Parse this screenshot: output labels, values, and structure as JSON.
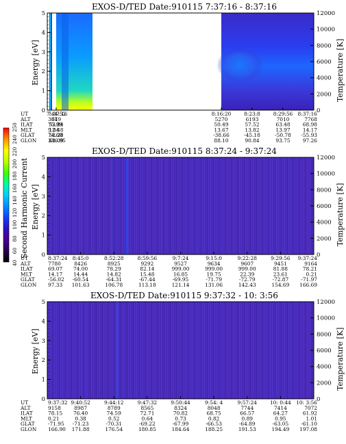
{
  "colorbar": {
    "label": "Second Harmonic Current",
    "ticks": [
      "40",
      "60",
      "80",
      "100",
      "120",
      "140",
      "160",
      "180",
      "200",
      "220",
      "240",
      "250"
    ],
    "colors": [
      "#000000",
      "#2a0050",
      "#4a0090",
      "#3010c0",
      "#1040ff",
      "#0090ff",
      "#00d0ff",
      "#00ffa0",
      "#40ff00",
      "#c0ff00",
      "#ffff00",
      "#ff9000",
      "#ff0000"
    ]
  },
  "chart_data": [
    {
      "type": "heatmap",
      "title": "EXOS-D/TED   Date:910115  7:37:16 - 8:37:16",
      "ylabel": "Energy [eV]",
      "ylabel_right": "Temperature [K]",
      "ylim": [
        0,
        5
      ],
      "ylim_right": [
        0,
        12000
      ],
      "y_ticks": [
        "0",
        "1",
        "2",
        "3",
        "4",
        "5"
      ],
      "y_ticks_right": [
        "0",
        "2000",
        "4000",
        "6000",
        "8000",
        "10000",
        "12000"
      ],
      "orbit_row_labels": [
        "UT",
        "ALT",
        "ILAT",
        "MLT",
        "GLAT",
        "GLON"
      ],
      "orbit_columns": [
        {
          "UT": "7:37:16",
          "ALT": "387",
          "ILAT": "75.99",
          "MLT": "9.04",
          "GLAT": "74.60",
          "GLON": "336.95"
        },
        {
          "UT": "7:44:52",
          "ALT": "649",
          "ILAT": "53.84",
          "MLT": "12.48",
          "GLAT": "58.28",
          "GLON": "60.09"
        },
        {
          "UT": "8:16:20",
          "ALT": "5270",
          "ILAT": "50.49",
          "MLT": "13.67",
          "GLAT": "-38.66",
          "GLON": "88.10"
        },
        {
          "UT": "8:23:8",
          "ALT": "6193",
          "ILAT": "57.52",
          "MLT": "13.82",
          "GLAT": "-45.18",
          "GLON": "90.84"
        },
        {
          "UT": "8:29:56",
          "ALT": "7010",
          "ILAT": "63.48",
          "MLT": "13.97",
          "GLAT": "-50.78",
          "GLON": "93.75"
        },
        {
          "UT": "8:37:16",
          "ALT": "7768",
          "ILAT": "68.98",
          "MLT": "14.17",
          "GLAT": "-55.93",
          "GLON": "97.26"
        }
      ]
    },
    {
      "type": "heatmap",
      "title": "EXOS-D/TED   Date:910115  8:37:24 - 9:37:24",
      "ylabel": "Energy [eV]",
      "ylabel_right": "Temperature [K]",
      "ylim": [
        0,
        5
      ],
      "ylim_right": [
        0,
        12000
      ],
      "y_ticks": [
        "0",
        "1",
        "2",
        "3",
        "4",
        "5"
      ],
      "y_ticks_right": [
        "0",
        "2000",
        "4000",
        "6000",
        "8000",
        "10000",
        "12000"
      ],
      "orbit_row_labels": [
        "UT",
        "ALT",
        "ILAT",
        "MLT",
        "GLAT",
        "GLON"
      ],
      "orbit_columns": [
        {
          "UT": "8:37:24",
          "ALT": "7780",
          "ILAT": "69.07",
          "MLT": "14.17",
          "GLAT": "-56.02",
          "GLON": "97.33"
        },
        {
          "UT": "8:45:0",
          "ALT": "8426",
          "ILAT": "74.00",
          "MLT": "14.44",
          "GLAT": "-60.54",
          "GLON": "101.63"
        },
        {
          "UT": "8:52:28",
          "ALT": "8925",
          "ILAT": "78.29",
          "MLT": "14.82",
          "GLAT": "-64.31",
          "GLON": "106.78"
        },
        {
          "UT": "8:59:56",
          "ALT": "9292",
          "ILAT": "82.14",
          "MLT": "15.48",
          "GLAT": "-67.44",
          "GLON": "113.18"
        },
        {
          "UT": "9:7:24",
          "ALT": "9527",
          "ILAT": "999.00",
          "MLT": "16.85",
          "GLAT": "-69.95",
          "GLON": "121.14"
        },
        {
          "UT": "9:15:0",
          "ALT": "9634",
          "ILAT": "999.00",
          "MLT": "19.75",
          "GLAT": "-71.79",
          "GLON": "131.06"
        },
        {
          "UT": "9:22:28",
          "ALT": "9607",
          "ILAT": "999.00",
          "MLT": "22.39",
          "GLAT": "-72.79",
          "GLON": "142.43"
        },
        {
          "UT": "9:29:56",
          "ALT": "9451",
          "ILAT": "81.88",
          "MLT": "23.61",
          "GLAT": "-72.87",
          "GLON": "154.69"
        },
        {
          "UT": "9:37:24",
          "ALT": "9164",
          "ILAT": "78.21",
          "MLT": "0.21",
          "GLAT": "-71.97",
          "GLON": "166.69"
        }
      ]
    },
    {
      "type": "heatmap",
      "title": "EXOS-D/TED   Date:910115  9:37:32 - 10: 3:56",
      "ylabel": "Energy [eV]",
      "ylabel_right": "Temperature [K]",
      "ylim": [
        0,
        5
      ],
      "ylim_right": [
        0,
        12000
      ],
      "y_ticks": [
        "0",
        "1",
        "2",
        "3",
        "4",
        "5"
      ],
      "y_ticks_right": [
        "0",
        "2000",
        "4000",
        "6000",
        "8000",
        "10000",
        "12000"
      ],
      "orbit_row_labels": [
        "UT",
        "ALT",
        "ILAT",
        "MLT",
        "GLAT",
        "GLON"
      ],
      "orbit_columns": [
        {
          "UT": "9:37:32",
          "ALT": "9158",
          "ILAT": "78.15",
          "MLT": "0.21",
          "GLAT": "-71.95",
          "GLON": "166.90"
        },
        {
          "UT": "9:40:52",
          "ALT": "8987",
          "ILAT": "76.40",
          "MLT": "0.38",
          "GLAT": "-71.23",
          "GLON": "171.88"
        },
        {
          "UT": "9:44:12",
          "ALT": "8789",
          "ILAT": "74.59",
          "MLT": "0.52",
          "GLAT": "-70.31",
          "GLON": "176.54"
        },
        {
          "UT": "9:47:32",
          "ALT": "8565",
          "ILAT": "72.71",
          "MLT": "0.64",
          "GLAT": "-69.22",
          "GLON": "180.85"
        },
        {
          "UT": "9:50:44",
          "ALT": "8324",
          "ILAT": "70.82",
          "MLT": "0.73",
          "GLAT": "-67.99",
          "GLON": "184.64"
        },
        {
          "UT": "9:54: 4",
          "ALT": "8048",
          "ILAT": "68.75",
          "MLT": "0.82",
          "GLAT": "-66.53",
          "GLON": "188.25"
        },
        {
          "UT": "9:57:24",
          "ALT": "7744",
          "ILAT": "66.57",
          "MLT": "0.89",
          "GLAT": "-64.89",
          "GLON": "191.53"
        },
        {
          "UT": "10: 0:44",
          "ALT": "7414",
          "ILAT": "64.27",
          "MLT": "0.95",
          "GLAT": "-63.05",
          "GLON": "194.49"
        },
        {
          "UT": "10: 3:56",
          "ALT": "7072",
          "ILAT": "61.92",
          "MLT": "1.01",
          "GLAT": "-61.10",
          "GLON": "197.08"
        }
      ]
    }
  ]
}
